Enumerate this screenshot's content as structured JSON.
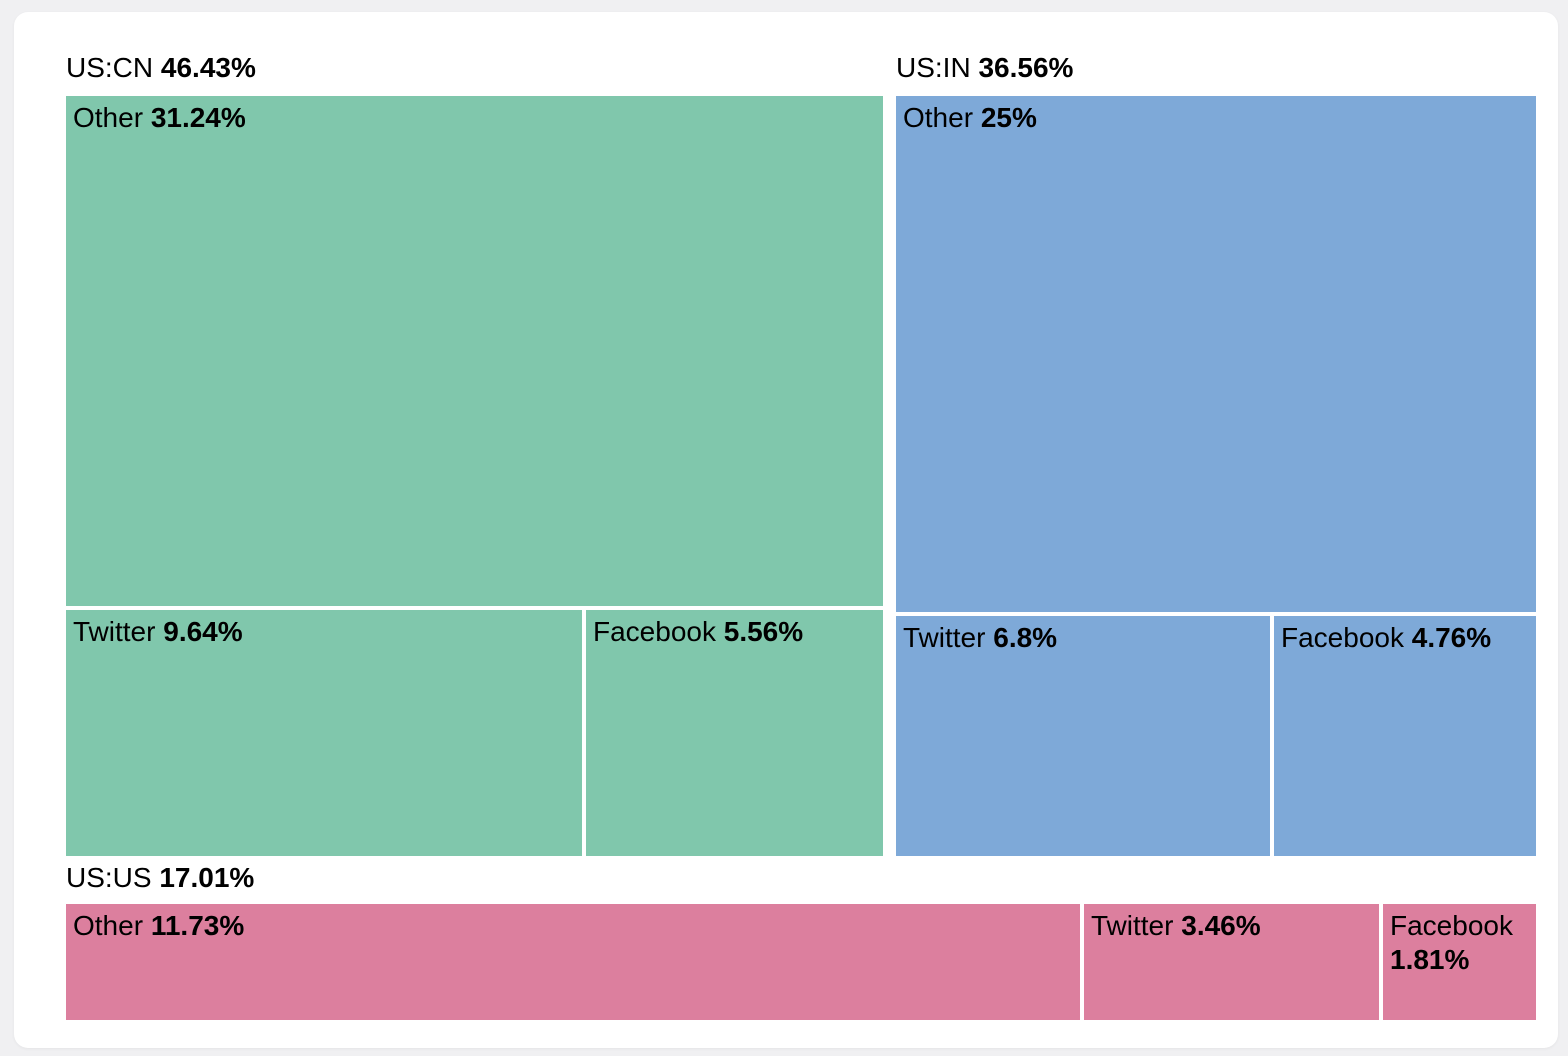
{
  "chart_data": {
    "type": "treemap",
    "title": "",
    "legend": "none",
    "unit": "%",
    "groups": [
      {
        "label": "US:CN",
        "value": 46.43,
        "value_label": "46.43%",
        "color": "#80c7ac",
        "children": [
          {
            "label": "Other",
            "value": 31.24,
            "value_label": "31.24%"
          },
          {
            "label": "Twitter",
            "value": 9.64,
            "value_label": "9.64%"
          },
          {
            "label": "Facebook",
            "value": 5.56,
            "value_label": "5.56%"
          }
        ]
      },
      {
        "label": "US:IN",
        "value": 36.56,
        "value_label": "36.56%",
        "color": "#7ea9d8",
        "children": [
          {
            "label": "Other",
            "value": 25,
            "value_label": "25%"
          },
          {
            "label": "Twitter",
            "value": 6.8,
            "value_label": "6.8%"
          },
          {
            "label": "Facebook",
            "value": 4.76,
            "value_label": "4.76%"
          }
        ]
      },
      {
        "label": "US:US",
        "value": 17.01,
        "value_label": "17.01%",
        "color": "#dc7f9e",
        "children": [
          {
            "label": "Other",
            "value": 11.73,
            "value_label": "11.73%"
          },
          {
            "label": "Twitter",
            "value": 3.46,
            "value_label": "3.46%"
          },
          {
            "label": "Facebook",
            "value": 1.81,
            "value_label": "1.81%"
          }
        ]
      }
    ],
    "layout_hints": {
      "top_row_groups": [
        "US:CN",
        "US:IN"
      ],
      "bottom_row_groups": [
        "US:US"
      ],
      "background": "#f0f0f2",
      "card_background": "#ffffff",
      "text_color": "#000000"
    }
  }
}
